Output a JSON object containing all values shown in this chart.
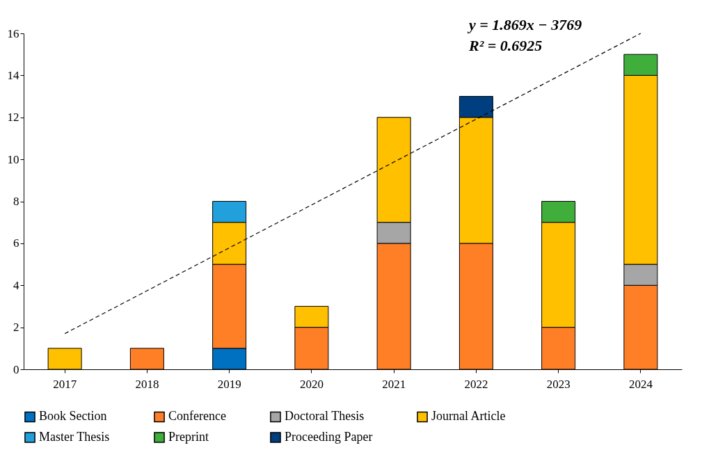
{
  "chart_data": {
    "type": "bar",
    "stacked": true,
    "categories": [
      "2017",
      "2018",
      "2019",
      "2020",
      "2021",
      "2022",
      "2023",
      "2024"
    ],
    "series": [
      {
        "name": "Book Section",
        "color": "#0070c0",
        "values": [
          null,
          null,
          1,
          null,
          null,
          null,
          null,
          null
        ]
      },
      {
        "name": "Conference",
        "color": "#ff7f27",
        "values": [
          null,
          1,
          4,
          2,
          6,
          6,
          2,
          4
        ]
      },
      {
        "name": "Doctoral Thesis",
        "color": "#a6a6a6",
        "values": [
          null,
          null,
          null,
          null,
          1,
          null,
          null,
          1
        ]
      },
      {
        "name": "Journal Article",
        "color": "#ffc000",
        "values": [
          1,
          null,
          2,
          1,
          5,
          6,
          5,
          9
        ]
      },
      {
        "name": "Master Thesis",
        "color": "#22a0dc",
        "values": [
          null,
          null,
          1,
          null,
          null,
          null,
          null,
          null
        ]
      },
      {
        "name": "Preprint",
        "color": "#3fae3a",
        "values": [
          null,
          null,
          null,
          null,
          null,
          null,
          1,
          1
        ]
      },
      {
        "name": "Proceeding Paper",
        "color": "#003f7f",
        "values": [
          null,
          null,
          null,
          null,
          null,
          1,
          null,
          null
        ]
      },
      {
        "type": "line",
        "color": "#000000",
        "line_style": "dashed",
        "values": [
          1.7,
          null,
          null,
          null,
          null,
          null,
          null,
          16
        ]
      }
    ],
    "ylim": [
      0,
      16
    ],
    "yticks": [
      0,
      2,
      4,
      6,
      8,
      10,
      12,
      14,
      16
    ],
    "grid": false,
    "legend": "bottom",
    "annotations": [
      "y = 1.869x − 3769",
      "R² = 0.6925"
    ]
  }
}
